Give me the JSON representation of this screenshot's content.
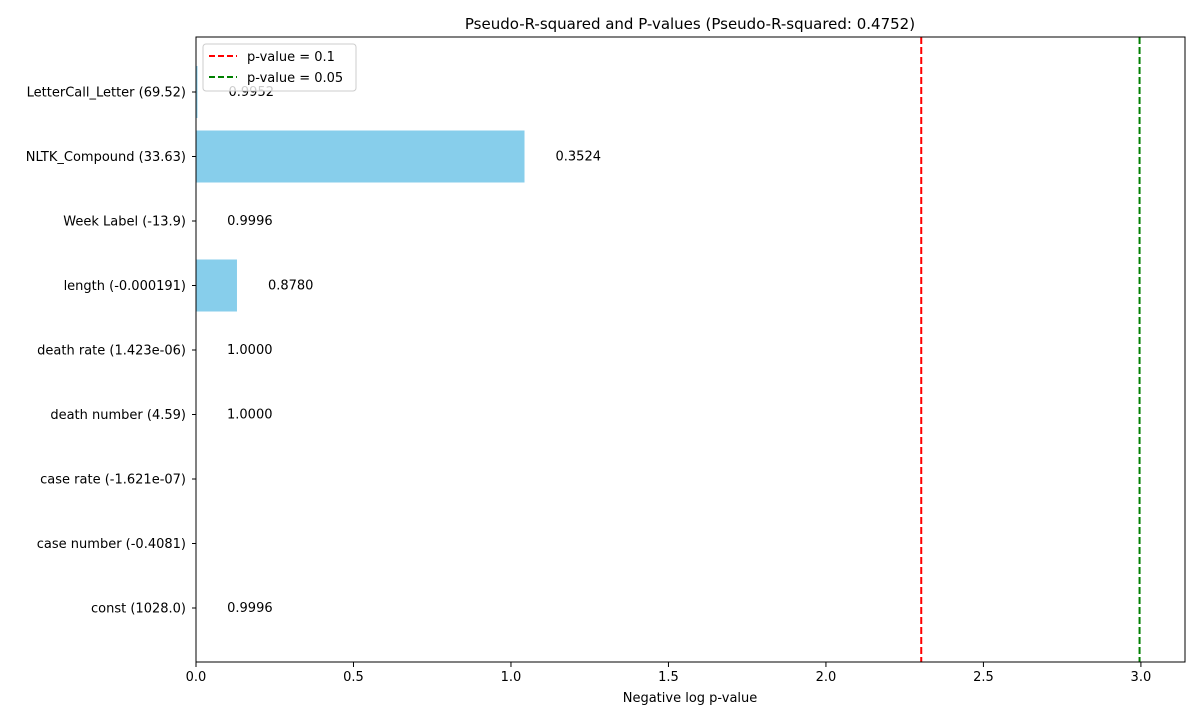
{
  "chart_data": {
    "type": "bar",
    "orientation": "horizontal",
    "title": "Pseudo-R-squared and P-values (Pseudo-R-squared: 0.4752)",
    "xlabel": "Negative log p-value",
    "ylabel": "",
    "xlim": [
      0,
      3.14
    ],
    "xticks": [
      0.0,
      0.5,
      1.0,
      1.5,
      2.0,
      2.5,
      3.0
    ],
    "xtick_labels": [
      "0.0",
      "0.5",
      "1.0",
      "1.5",
      "2.0",
      "2.5",
      "3.0"
    ],
    "grid": false,
    "bar_color": "#87CEEB",
    "categories": [
      "LetterCall_Letter (69.52)",
      "NLTK_Compound (33.63)",
      "Week Label (-13.9)",
      "length (-0.000191)",
      "death rate (1.423e-06)",
      "death number (4.59)",
      "case rate (-1.621e-07)",
      "case number (-0.4081)",
      "const (1028.0)"
    ],
    "values": [
      0.0048,
      1.043,
      0.0004,
      0.1301,
      0.0,
      0.0,
      0.0,
      0.0,
      0.0004
    ],
    "data_labels": [
      "0.9952",
      "0.3524",
      "0.9996",
      "0.8780",
      "1.0000",
      "1.0000",
      "",
      "",
      "0.9996"
    ],
    "reference_lines": [
      {
        "x": 2.302585,
        "label": "p-value = 0.1",
        "color": "#FF0000"
      },
      {
        "x": 2.995732,
        "label": "p-value = 0.05",
        "color": "#008000"
      }
    ],
    "legend_position": "top-left"
  }
}
